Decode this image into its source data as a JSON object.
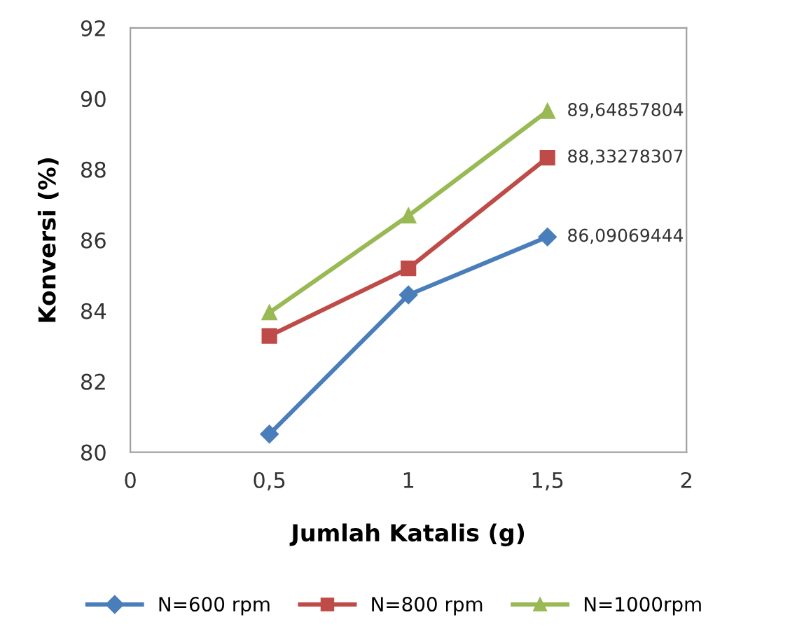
{
  "chart_data": {
    "type": "line",
    "xlabel": "Jumlah Katalis (g)",
    "ylabel": "Konversi (%)",
    "x": [
      0.5,
      1,
      1.5
    ],
    "series": [
      {
        "name": "N=600 rpm",
        "color": "#4a7ebb",
        "marker": "diamond",
        "values": [
          80.51,
          84.45,
          86.09069444
        ],
        "value_labels": [
          null,
          null,
          "86,09069444"
        ]
      },
      {
        "name": "N=800 rpm",
        "color": "#be4b48",
        "marker": "square",
        "values": [
          83.29,
          85.2,
          88.33278307
        ],
        "value_labels": [
          null,
          null,
          "88,33278307"
        ]
      },
      {
        "name": "N=1000rpm",
        "color": "#98b954",
        "marker": "triangle",
        "values": [
          83.95,
          86.69,
          89.64857804
        ],
        "value_labels": [
          null,
          null,
          "89,64857804"
        ]
      }
    ],
    "xlim": [
      0,
      2
    ],
    "xticks": [
      0,
      {
        "value": 0.5,
        "label": "0,5"
      },
      1,
      {
        "value": 1.5,
        "label": "1,5"
      },
      2
    ],
    "ylim": [
      80,
      92
    ],
    "yticks": [
      80,
      82,
      84,
      86,
      88,
      90,
      92
    ],
    "grid": false,
    "legend": "bottom"
  }
}
